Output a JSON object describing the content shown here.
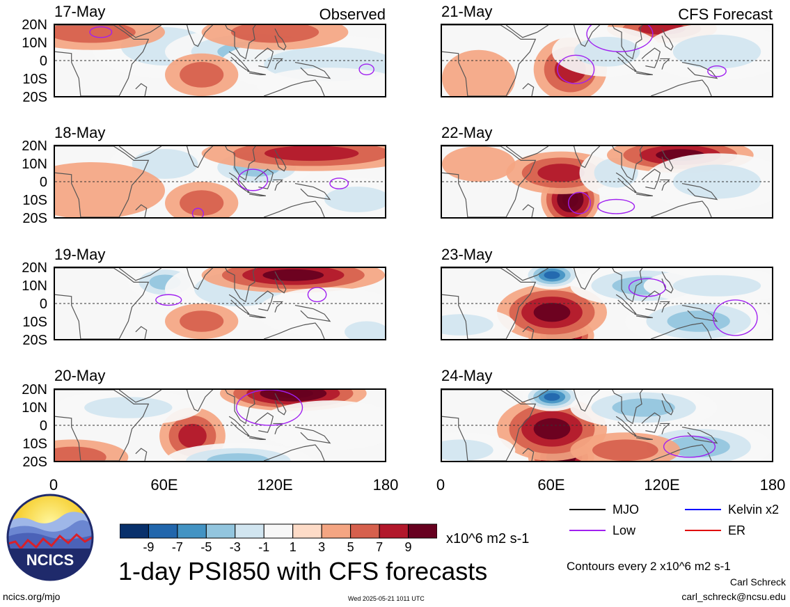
{
  "panels_left": [
    {
      "date": "17-May",
      "header": "Observed"
    },
    {
      "date": "18-May",
      "header": ""
    },
    {
      "date": "19-May",
      "header": ""
    },
    {
      "date": "20-May",
      "header": ""
    }
  ],
  "panels_right": [
    {
      "date": "21-May",
      "header": "CFS Forecast"
    },
    {
      "date": "22-May",
      "header": ""
    },
    {
      "date": "23-May",
      "header": ""
    },
    {
      "date": "24-May",
      "header": ""
    }
  ],
  "lat_labels": [
    "20N",
    "10N",
    "0",
    "10S",
    "20S"
  ],
  "lon_labels": [
    "0",
    "60E",
    "120E",
    "180"
  ],
  "colorbar": {
    "colors": [
      "#08306b",
      "#2166ac",
      "#4393c3",
      "#92c5de",
      "#d1e5f0",
      "#f7f7f7",
      "#fddbc7",
      "#f4a582",
      "#d6604d",
      "#b2182b",
      "#67001f"
    ],
    "labels": [
      "-9",
      "-7",
      "-5",
      "-3",
      "-1",
      "1",
      "3",
      "5",
      "7",
      "9"
    ],
    "units": "x10^6 m2 s-1"
  },
  "title": "1-day PSI850 with CFS forecasts",
  "legend": [
    {
      "label": "MJO",
      "color": "#000000"
    },
    {
      "label": "Kelvin x2",
      "color": "#0000ff"
    },
    {
      "label": "Low",
      "color": "#a020f0"
    },
    {
      "label": "ER",
      "color": "#e00000"
    }
  ],
  "contour_note": "Contours every 2 x10^6 m2 s-1",
  "author": "Carl Schreck",
  "email": "carl_schreck@ncsu.edu",
  "site": "ncics.org/mjo",
  "timestamp": "Wed 2025-05-21 1011 UTC",
  "logo": {
    "text": "NCICS"
  }
}
